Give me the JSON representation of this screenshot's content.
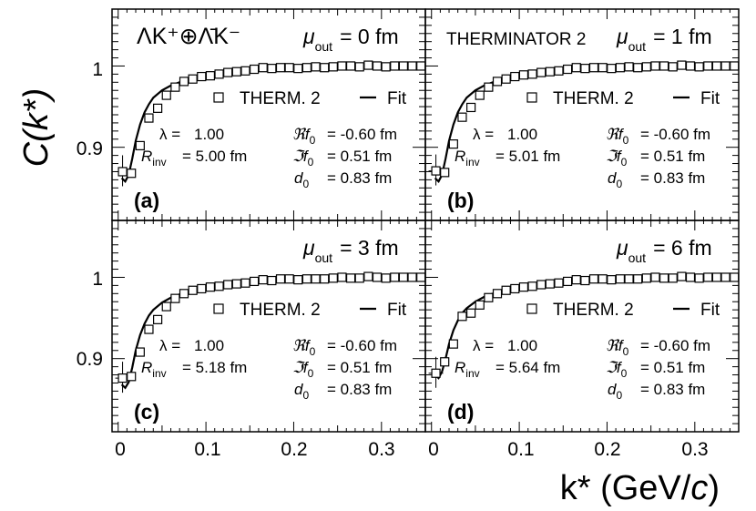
{
  "figure": {
    "ylabel": "C(k*)",
    "xlabel_main": "k* (GeV/",
    "xlabel_italic": "c",
    "xlabel_close": ")",
    "system_label": "ΛK⁺⊕Λ̄K⁻",
    "generator_label": "THERMINATOR 2",
    "legend_data": "THERM. 2",
    "legend_fit": "Fit",
    "xticks": [
      "0",
      "0.1",
      "0.2",
      "0.3"
    ],
    "yticks": [
      "0.9",
      "1"
    ],
    "colors": {
      "axis": "#000000",
      "marker": "#000000",
      "fit": "#000000"
    }
  },
  "chart_data": [
    {
      "type": "scatter",
      "panel_label": "(a)",
      "mu_label": "μ",
      "mu_sub": "out",
      "mu_value": "= 0 fm",
      "params": [
        {
          "name": "λ =",
          "value": "1.00"
        },
        {
          "name": "R",
          "sub": "inv",
          "value": "= 5.00 fm"
        },
        {
          "name": "ℜf",
          "sub": "0",
          "value": "= -0.60 fm"
        },
        {
          "name": "ℑf",
          "sub": "0",
          "value": "= 0.51 fm"
        },
        {
          "name": "d",
          "sub": "0",
          "value": "= 0.83 fm"
        }
      ],
      "xlim": [
        -0.007,
        0.35
      ],
      "ylim": [
        0.81,
        1.07
      ],
      "series": [
        {
          "name": "THERM. 2",
          "x": [
            0.005,
            0.015,
            0.025,
            0.035,
            0.045,
            0.055,
            0.065,
            0.075,
            0.085,
            0.095,
            0.105,
            0.115,
            0.125,
            0.135,
            0.145,
            0.155,
            0.165,
            0.175,
            0.185,
            0.195,
            0.205,
            0.215,
            0.225,
            0.235,
            0.245,
            0.255,
            0.265,
            0.275,
            0.285,
            0.295,
            0.305,
            0.315,
            0.325,
            0.335,
            0.345
          ],
          "y": [
            0.87,
            0.868,
            0.902,
            0.936,
            0.948,
            0.964,
            0.974,
            0.981,
            0.984,
            0.987,
            0.988,
            0.99,
            0.992,
            0.993,
            0.994,
            0.996,
            0.998,
            0.997,
            0.998,
            0.998,
            0.997,
            0.998,
            0.999,
            0.998,
            0.999,
            1.0,
            1.0,
            0.999,
            1.001,
            1.0,
            0.999,
            1.0,
            1.0,
            1.0,
            1.0
          ]
        },
        {
          "name": "Fit",
          "x": [
            0.004,
            0.008,
            0.012,
            0.016,
            0.02,
            0.025,
            0.03,
            0.035,
            0.04,
            0.05,
            0.06,
            0.07,
            0.08,
            0.1,
            0.12,
            0.15,
            0.2,
            0.25,
            0.3,
            0.35
          ],
          "y": [
            0.862,
            0.858,
            0.866,
            0.886,
            0.908,
            0.928,
            0.943,
            0.953,
            0.961,
            0.97,
            0.976,
            0.98,
            0.984,
            0.988,
            0.991,
            0.994,
            0.997,
            0.998,
            0.999,
            1.0
          ]
        }
      ]
    },
    {
      "type": "scatter",
      "panel_label": "(b)",
      "mu_label": "μ",
      "mu_sub": "out",
      "mu_value": "= 1 fm",
      "params": [
        {
          "name": "λ =",
          "value": "1.00"
        },
        {
          "name": "R",
          "sub": "inv",
          "value": "= 5.01 fm"
        },
        {
          "name": "ℜf",
          "sub": "0",
          "value": "= -0.60 fm"
        },
        {
          "name": "ℑf",
          "sub": "0",
          "value": "= 0.51 fm"
        },
        {
          "name": "d",
          "sub": "0",
          "value": "= 0.83 fm"
        }
      ],
      "xlim": [
        -0.007,
        0.35
      ],
      "ylim": [
        0.81,
        1.07
      ],
      "series": [
        {
          "name": "THERM. 2",
          "x": [
            0.005,
            0.015,
            0.025,
            0.035,
            0.045,
            0.055,
            0.065,
            0.075,
            0.085,
            0.095,
            0.105,
            0.115,
            0.125,
            0.135,
            0.145,
            0.155,
            0.165,
            0.175,
            0.185,
            0.195,
            0.205,
            0.215,
            0.225,
            0.235,
            0.245,
            0.255,
            0.265,
            0.275,
            0.285,
            0.295,
            0.305,
            0.315,
            0.325,
            0.335,
            0.345
          ],
          "y": [
            0.871,
            0.869,
            0.904,
            0.937,
            0.949,
            0.964,
            0.974,
            0.981,
            0.984,
            0.987,
            0.989,
            0.99,
            0.992,
            0.993,
            0.994,
            0.996,
            0.998,
            0.997,
            0.998,
            0.998,
            0.997,
            0.998,
            0.999,
            0.998,
            0.999,
            1.0,
            1.0,
            0.999,
            1.001,
            1.0,
            0.999,
            1.0,
            1.0,
            1.0,
            1.0
          ]
        },
        {
          "name": "Fit",
          "x": [
            0.004,
            0.008,
            0.012,
            0.016,
            0.02,
            0.025,
            0.03,
            0.035,
            0.04,
            0.05,
            0.06,
            0.07,
            0.08,
            0.1,
            0.12,
            0.15,
            0.2,
            0.25,
            0.3,
            0.35
          ],
          "y": [
            0.862,
            0.858,
            0.866,
            0.886,
            0.908,
            0.928,
            0.943,
            0.953,
            0.961,
            0.97,
            0.976,
            0.98,
            0.984,
            0.988,
            0.991,
            0.994,
            0.997,
            0.998,
            0.999,
            1.0
          ]
        }
      ]
    },
    {
      "type": "scatter",
      "panel_label": "(c)",
      "mu_label": "μ",
      "mu_sub": "out",
      "mu_value": "= 3 fm",
      "params": [
        {
          "name": "λ =",
          "value": "1.00"
        },
        {
          "name": "R",
          "sub": "inv",
          "value": "= 5.18 fm"
        },
        {
          "name": "ℜf",
          "sub": "0",
          "value": "= -0.60 fm"
        },
        {
          "name": "ℑf",
          "sub": "0",
          "value": "= 0.51 fm"
        },
        {
          "name": "d",
          "sub": "0",
          "value": "= 0.83 fm"
        }
      ],
      "xlim": [
        -0.007,
        0.35
      ],
      "ylim": [
        0.81,
        1.07
      ],
      "series": [
        {
          "name": "THERM. 2",
          "x": [
            0.005,
            0.015,
            0.025,
            0.035,
            0.045,
            0.055,
            0.065,
            0.075,
            0.085,
            0.095,
            0.105,
            0.115,
            0.125,
            0.135,
            0.145,
            0.155,
            0.165,
            0.175,
            0.185,
            0.195,
            0.205,
            0.215,
            0.225,
            0.235,
            0.245,
            0.255,
            0.265,
            0.275,
            0.285,
            0.295,
            0.305,
            0.315,
            0.325,
            0.335,
            0.345
          ],
          "y": [
            0.876,
            0.878,
            0.908,
            0.936,
            0.948,
            0.964,
            0.974,
            0.98,
            0.984,
            0.986,
            0.988,
            0.989,
            0.991,
            0.992,
            0.993,
            0.995,
            0.997,
            0.996,
            0.998,
            0.998,
            0.997,
            0.998,
            0.998,
            0.998,
            0.999,
            1.0,
            0.999,
            0.999,
            1.001,
            1.0,
            0.999,
            1.0,
            1.0,
            1.0,
            1.0
          ]
        },
        {
          "name": "Fit",
          "x": [
            0.004,
            0.008,
            0.012,
            0.016,
            0.02,
            0.025,
            0.03,
            0.035,
            0.04,
            0.05,
            0.06,
            0.07,
            0.08,
            0.1,
            0.12,
            0.15,
            0.2,
            0.25,
            0.3,
            0.35
          ],
          "y": [
            0.868,
            0.864,
            0.871,
            0.889,
            0.91,
            0.929,
            0.943,
            0.953,
            0.96,
            0.969,
            0.975,
            0.979,
            0.983,
            0.987,
            0.99,
            0.993,
            0.996,
            0.998,
            0.999,
            1.0
          ]
        }
      ]
    },
    {
      "type": "scatter",
      "panel_label": "(d)",
      "mu_label": "μ",
      "mu_sub": "out",
      "mu_value": "= 6 fm",
      "params": [
        {
          "name": "λ =",
          "value": "1.00"
        },
        {
          "name": "R",
          "sub": "inv",
          "value": "= 5.64 fm"
        },
        {
          "name": "ℜf",
          "sub": "0",
          "value": "= -0.60 fm"
        },
        {
          "name": "ℑf",
          "sub": "0",
          "value": "= 0.51 fm"
        },
        {
          "name": "d",
          "sub": "0",
          "value": "= 0.83 fm"
        }
      ],
      "xlim": [
        -0.007,
        0.35
      ],
      "ylim": [
        0.81,
        1.07
      ],
      "series": [
        {
          "name": "THERM. 2",
          "x": [
            0.005,
            0.015,
            0.025,
            0.035,
            0.045,
            0.055,
            0.065,
            0.075,
            0.085,
            0.095,
            0.105,
            0.115,
            0.125,
            0.135,
            0.145,
            0.155,
            0.165,
            0.175,
            0.185,
            0.195,
            0.205,
            0.215,
            0.225,
            0.235,
            0.245,
            0.255,
            0.265,
            0.275,
            0.285,
            0.295,
            0.305,
            0.315,
            0.325,
            0.335,
            0.345
          ],
          "y": [
            0.882,
            0.896,
            0.918,
            0.952,
            0.956,
            0.966,
            0.975,
            0.98,
            0.984,
            0.986,
            0.988,
            0.989,
            0.991,
            0.992,
            0.993,
            0.995,
            0.997,
            0.996,
            0.998,
            0.998,
            0.997,
            0.998,
            0.998,
            0.998,
            0.999,
            1.0,
            0.999,
            0.999,
            1.001,
            1.0,
            0.999,
            1.0,
            1.0,
            1.0,
            1.0
          ]
        },
        {
          "name": "Fit",
          "x": [
            0.004,
            0.008,
            0.012,
            0.016,
            0.02,
            0.025,
            0.03,
            0.035,
            0.04,
            0.05,
            0.06,
            0.07,
            0.08,
            0.1,
            0.12,
            0.15,
            0.2,
            0.25,
            0.3,
            0.35
          ],
          "y": [
            0.88,
            0.876,
            0.884,
            0.9,
            0.918,
            0.935,
            0.947,
            0.956,
            0.962,
            0.97,
            0.976,
            0.98,
            0.983,
            0.987,
            0.99,
            0.993,
            0.996,
            0.998,
            0.999,
            1.0
          ]
        }
      ]
    }
  ]
}
